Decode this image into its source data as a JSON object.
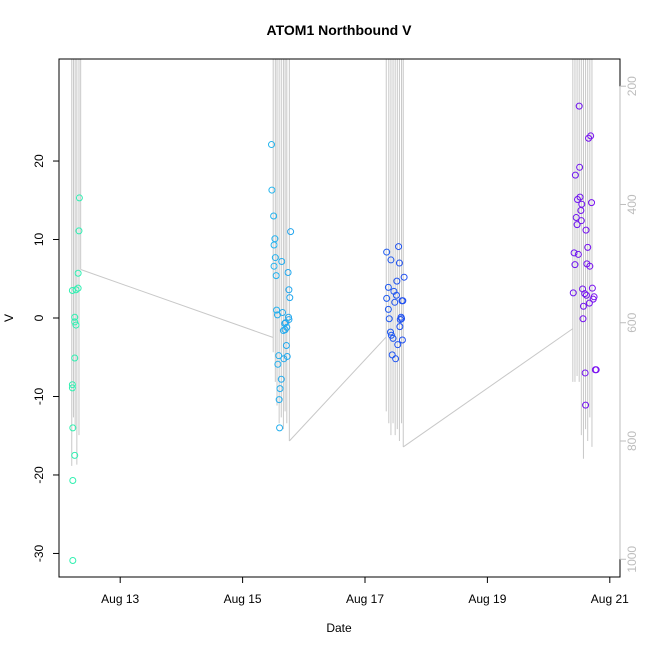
{
  "chart_data": {
    "type": "scatter",
    "title": "ATOM1 Northbound V",
    "xlabel": "Date",
    "ylabel": "V",
    "xlim": [
      "2021-08-12T00:00",
      "2021-08-21T04:00"
    ],
    "ylim": [
      -33,
      33
    ],
    "x_ticks": [
      {
        "date": "2021-08-13",
        "label": "Aug 13"
      },
      {
        "date": "2021-08-15",
        "label": "Aug 15"
      },
      {
        "date": "2021-08-17",
        "label": "Aug 17"
      },
      {
        "date": "2021-08-19",
        "label": "Aug 19"
      },
      {
        "date": "2021-08-21",
        "label": "Aug 21"
      }
    ],
    "y_ticks": [
      -30,
      -20,
      -10,
      0,
      10,
      20
    ],
    "secondary_axis": {
      "side": "right",
      "color": "#bdbdbd",
      "reversed": true,
      "range": [
        154,
        1030
      ],
      "ticks": [
        200,
        400,
        600,
        800,
        1000
      ]
    },
    "grid": false,
    "legend": "none",
    "colors": {
      "depth_line": "#c8c8c8",
      "ramp": [
        "#30f0b0",
        "#25c8ee",
        "#1e40f0",
        "#7a10f0"
      ]
    },
    "series": [
      {
        "points": [
          {
            "x": "2021-08-12T05:15",
            "y": 3.5
          },
          {
            "x": "2021-08-12T05:15",
            "y": -8.5
          },
          {
            "x": "2021-08-12T05:15",
            "y": -8.9
          },
          {
            "x": "2021-08-12T05:25",
            "y": -14.0
          },
          {
            "x": "2021-08-12T05:25",
            "y": -20.7
          },
          {
            "x": "2021-08-12T05:25",
            "y": -30.9
          },
          {
            "x": "2021-08-12T06:10",
            "y": 0.1
          },
          {
            "x": "2021-08-12T06:10",
            "y": -0.5
          },
          {
            "x": "2021-08-12T06:10",
            "y": -5.1
          },
          {
            "x": "2021-08-12T06:10",
            "y": -17.5
          },
          {
            "x": "2021-08-12T06:40",
            "y": -0.9
          },
          {
            "x": "2021-08-12T06:40",
            "y": 3.6
          },
          {
            "x": "2021-08-12T07:30",
            "y": 3.8
          },
          {
            "x": "2021-08-12T07:30",
            "y": 5.7
          },
          {
            "x": "2021-08-12T07:50",
            "y": 11.1
          },
          {
            "x": "2021-08-12T08:00",
            "y": 15.3
          }
        ]
      },
      {
        "points": [
          {
            "x": "2021-08-15T11:20",
            "y": 22.1
          },
          {
            "x": "2021-08-15T11:30",
            "y": 16.3
          },
          {
            "x": "2021-08-15T12:10",
            "y": 13.0
          },
          {
            "x": "2021-08-15T12:20",
            "y": 9.3
          },
          {
            "x": "2021-08-15T12:40",
            "y": 10.1
          },
          {
            "x": "2021-08-15T12:50",
            "y": 7.7
          },
          {
            "x": "2021-08-15T12:20",
            "y": 6.6
          },
          {
            "x": "2021-08-15T13:10",
            "y": 5.4
          },
          {
            "x": "2021-08-15T13:20",
            "y": 1.0
          },
          {
            "x": "2021-08-15T13:40",
            "y": 0.4
          },
          {
            "x": "2021-08-15T13:50",
            "y": -5.9
          },
          {
            "x": "2021-08-15T14:10",
            "y": -4.8
          },
          {
            "x": "2021-08-15T14:20",
            "y": -10.4
          },
          {
            "x": "2021-08-15T14:30",
            "y": -14.0
          },
          {
            "x": "2021-08-15T14:40",
            "y": -9.0
          },
          {
            "x": "2021-08-15T15:10",
            "y": -7.8
          },
          {
            "x": "2021-08-15T15:20",
            "y": 7.2
          },
          {
            "x": "2021-08-15T15:40",
            "y": 0.7
          },
          {
            "x": "2021-08-15T16:00",
            "y": -1.6
          },
          {
            "x": "2021-08-15T16:10",
            "y": -5.2
          },
          {
            "x": "2021-08-15T16:30",
            "y": -0.7
          },
          {
            "x": "2021-08-15T16:40",
            "y": -1.5
          },
          {
            "x": "2021-08-15T16:50",
            "y": -0.6
          },
          {
            "x": "2021-08-15T17:10",
            "y": -3.5
          },
          {
            "x": "2021-08-15T17:20",
            "y": -1.2
          },
          {
            "x": "2021-08-15T17:30",
            "y": -4.9
          },
          {
            "x": "2021-08-15T17:50",
            "y": 5.8
          },
          {
            "x": "2021-08-15T18:00",
            "y": 0.1
          },
          {
            "x": "2021-08-15T18:10",
            "y": -0.2
          },
          {
            "x": "2021-08-15T18:10",
            "y": 3.6
          },
          {
            "x": "2021-08-15T18:30",
            "y": 2.6
          },
          {
            "x": "2021-08-15T18:50",
            "y": 11.0
          }
        ]
      },
      {
        "points": [
          {
            "x": "2021-08-17T08:30",
            "y": 8.4
          },
          {
            "x": "2021-08-17T08:30",
            "y": 2.5
          },
          {
            "x": "2021-08-17T09:10",
            "y": 3.9
          },
          {
            "x": "2021-08-17T09:10",
            "y": 1.1
          },
          {
            "x": "2021-08-17T09:30",
            "y": -0.1
          },
          {
            "x": "2021-08-17T10:00",
            "y": -1.8
          },
          {
            "x": "2021-08-17T10:10",
            "y": 7.4
          },
          {
            "x": "2021-08-17T10:20",
            "y": -2.2
          },
          {
            "x": "2021-08-17T10:40",
            "y": -4.7
          },
          {
            "x": "2021-08-17T11:00",
            "y": -2.6
          },
          {
            "x": "2021-08-17T11:20",
            "y": 3.4
          },
          {
            "x": "2021-08-17T11:40",
            "y": 2.0
          },
          {
            "x": "2021-08-17T12:00",
            "y": -5.2
          },
          {
            "x": "2021-08-17T12:20",
            "y": 2.9
          },
          {
            "x": "2021-08-17T12:30",
            "y": 4.7
          },
          {
            "x": "2021-08-17T12:50",
            "y": -3.4
          },
          {
            "x": "2021-08-17T13:10",
            "y": 9.1
          },
          {
            "x": "2021-08-17T13:30",
            "y": 7.0
          },
          {
            "x": "2021-08-17T13:40",
            "y": -1.1
          },
          {
            "x": "2021-08-17T13:50",
            "y": -0.2
          },
          {
            "x": "2021-08-17T14:10",
            "y": 0.1
          },
          {
            "x": "2021-08-17T14:20",
            "y": -0.1
          },
          {
            "x": "2021-08-17T14:30",
            "y": 2.2
          },
          {
            "x": "2021-08-17T14:40",
            "y": -2.8
          },
          {
            "x": "2021-08-17T14:50",
            "y": 2.2
          },
          {
            "x": "2021-08-17T15:20",
            "y": 5.2
          }
        ]
      },
      {
        "points": [
          {
            "x": "2021-08-20T09:40",
            "y": 3.2
          },
          {
            "x": "2021-08-20T10:00",
            "y": 8.3
          },
          {
            "x": "2021-08-20T10:20",
            "y": 6.8
          },
          {
            "x": "2021-08-20T10:30",
            "y": 18.2
          },
          {
            "x": "2021-08-20T10:50",
            "y": 12.8
          },
          {
            "x": "2021-08-20T11:10",
            "y": 11.9
          },
          {
            "x": "2021-08-20T11:20",
            "y": 15.1
          },
          {
            "x": "2021-08-20T11:40",
            "y": 8.1
          },
          {
            "x": "2021-08-20T12:00",
            "y": 27.0
          },
          {
            "x": "2021-08-20T12:10",
            "y": 19.2
          },
          {
            "x": "2021-08-20T12:20",
            "y": 15.4
          },
          {
            "x": "2021-08-20T12:40",
            "y": 13.7
          },
          {
            "x": "2021-08-20T12:50",
            "y": 12.4
          },
          {
            "x": "2021-08-20T13:00",
            "y": 14.5
          },
          {
            "x": "2021-08-20T13:20",
            "y": 3.7
          },
          {
            "x": "2021-08-20T13:30",
            "y": -0.1
          },
          {
            "x": "2021-08-20T13:40",
            "y": 1.5
          },
          {
            "x": "2021-08-20T14:10",
            "y": 3.1
          },
          {
            "x": "2021-08-20T14:20",
            "y": -7.0
          },
          {
            "x": "2021-08-20T14:30",
            "y": -11.1
          },
          {
            "x": "2021-08-20T14:40",
            "y": 11.2
          },
          {
            "x": "2021-08-20T14:50",
            "y": 2.9
          },
          {
            "x": "2021-08-20T15:00",
            "y": 6.9
          },
          {
            "x": "2021-08-20T15:20",
            "y": 9.0
          },
          {
            "x": "2021-08-20T15:40",
            "y": 22.9
          },
          {
            "x": "2021-08-20T16:00",
            "y": 1.9
          },
          {
            "x": "2021-08-20T16:10",
            "y": 6.6
          },
          {
            "x": "2021-08-20T16:30",
            "y": 23.2
          },
          {
            "x": "2021-08-20T16:50",
            "y": 14.7
          },
          {
            "x": "2021-08-20T17:10",
            "y": 3.8
          },
          {
            "x": "2021-08-20T17:30",
            "y": 2.4
          },
          {
            "x": "2021-08-20T17:50",
            "y": 2.7
          },
          {
            "x": "2021-08-20T18:20",
            "y": -6.6
          },
          {
            "x": "2021-08-20T18:40",
            "y": -6.6
          }
        ]
      }
    ],
    "depth_profiles": [
      {
        "x": "2021-08-12T05:00",
        "depth": [
          154,
          842
        ]
      },
      {
        "x": "2021-08-12T05:40",
        "depth": [
          154,
          760
        ]
      },
      {
        "x": "2021-08-12T06:20",
        "depth": [
          154,
          780
        ]
      },
      {
        "x": "2021-08-12T07:00",
        "depth": [
          154,
          840
        ]
      },
      {
        "x": "2021-08-12T07:50",
        "depth": [
          154,
          790
        ]
      },
      {
        "x": "2021-08-12T08:30",
        "depth": [
          154,
          510
        ]
      },
      {
        "x": "2021-08-15T12:00",
        "depth": [
          154,
          650
        ]
      },
      {
        "x": "2021-08-15T12:50",
        "depth": [
          154,
          700
        ]
      },
      {
        "x": "2021-08-15T13:30",
        "depth": [
          154,
          740
        ]
      },
      {
        "x": "2021-08-15T14:20",
        "depth": [
          154,
          770
        ]
      },
      {
        "x": "2021-08-15T15:10",
        "depth": [
          154,
          760
        ]
      },
      {
        "x": "2021-08-15T16:00",
        "depth": [
          154,
          780
        ]
      },
      {
        "x": "2021-08-15T16:40",
        "depth": [
          154,
          750
        ]
      },
      {
        "x": "2021-08-15T17:20",
        "depth": [
          154,
          770
        ]
      },
      {
        "x": "2021-08-15T18:20",
        "depth": [
          154,
          800
        ]
      },
      {
        "x": "2021-08-17T08:20",
        "depth": [
          154,
          750
        ]
      },
      {
        "x": "2021-08-17T09:20",
        "depth": [
          154,
          770
        ]
      },
      {
        "x": "2021-08-17T10:10",
        "depth": [
          154,
          790
        ]
      },
      {
        "x": "2021-08-17T11:00",
        "depth": [
          154,
          770
        ]
      },
      {
        "x": "2021-08-17T11:50",
        "depth": [
          154,
          790
        ]
      },
      {
        "x": "2021-08-17T12:40",
        "depth": [
          154,
          780
        ]
      },
      {
        "x": "2021-08-17T13:30",
        "depth": [
          154,
          800
        ]
      },
      {
        "x": "2021-08-17T14:20",
        "depth": [
          154,
          770
        ]
      },
      {
        "x": "2021-08-17T15:00",
        "depth": [
          154,
          810
        ]
      },
      {
        "x": "2021-08-20T09:30",
        "depth": [
          154,
          700
        ]
      },
      {
        "x": "2021-08-20T10:20",
        "depth": [
          154,
          700
        ]
      },
      {
        "x": "2021-08-20T11:10",
        "depth": [
          154,
          690
        ]
      },
      {
        "x": "2021-08-20T12:00",
        "depth": [
          154,
          700
        ]
      },
      {
        "x": "2021-08-20T12:50",
        "depth": [
          154,
          790
        ]
      },
      {
        "x": "2021-08-20T13:40",
        "depth": [
          154,
          830
        ]
      },
      {
        "x": "2021-08-20T14:30",
        "depth": [
          154,
          780
        ]
      },
      {
        "x": "2021-08-20T15:20",
        "depth": [
          154,
          800
        ]
      },
      {
        "x": "2021-08-20T16:10",
        "depth": [
          154,
          760
        ]
      },
      {
        "x": "2021-08-20T17:00",
        "depth": [
          154,
          810
        ]
      }
    ],
    "depth_connectors": [
      {
        "from": {
          "x": "2021-08-12T08:30",
          "depth": 510
        },
        "to": {
          "x": "2021-08-15T12:00",
          "depth": 625
        }
      },
      {
        "from": {
          "x": "2021-08-15T18:20",
          "depth": 800
        },
        "to": {
          "x": "2021-08-17T08:20",
          "depth": 624
        }
      },
      {
        "from": {
          "x": "2021-08-17T15:00",
          "depth": 810
        },
        "to": {
          "x": "2021-08-20T09:30",
          "depth": 610
        }
      }
    ]
  }
}
